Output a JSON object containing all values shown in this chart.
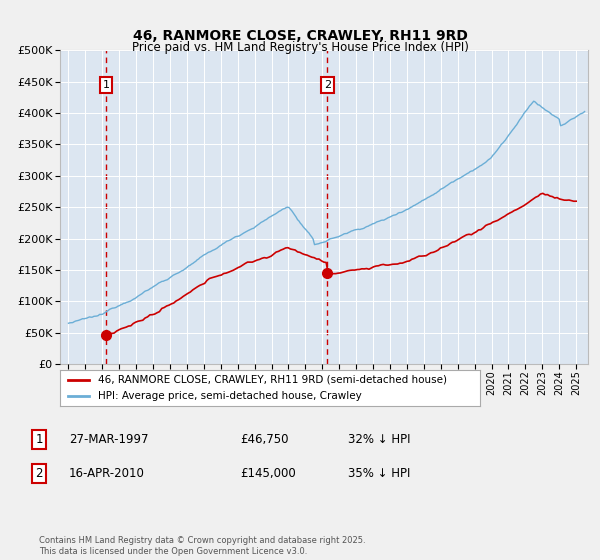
{
  "title": "46, RANMORE CLOSE, CRAWLEY, RH11 9RD",
  "subtitle": "Price paid vs. HM Land Registry's House Price Index (HPI)",
  "legend_line1": "46, RANMORE CLOSE, CRAWLEY, RH11 9RD (semi-detached house)",
  "legend_line2": "HPI: Average price, semi-detached house, Crawley",
  "footer": "Contains HM Land Registry data © Crown copyright and database right 2025.\nThis data is licensed under the Open Government Licence v3.0.",
  "transactions": [
    {
      "date_num": 1997.23,
      "price": 46750,
      "label": "1",
      "pct": "32% ↓ HPI",
      "date_str": "27-MAR-1997"
    },
    {
      "date_num": 2010.29,
      "price": 145000,
      "label": "2",
      "pct": "35% ↓ HPI",
      "date_str": "16-APR-2010"
    }
  ],
  "hpi_color": "#6baed6",
  "price_color": "#cc0000",
  "vline_color": "#cc0000",
  "marker_color": "#cc0000",
  "bg_color": "#dce6f1",
  "grid_color": "#ffffff",
  "ylim": [
    0,
    500000
  ],
  "xlim_start": 1994.5,
  "xlim_end": 2025.7,
  "ytick_step": 50000,
  "fig_bg": "#f0f0f0"
}
